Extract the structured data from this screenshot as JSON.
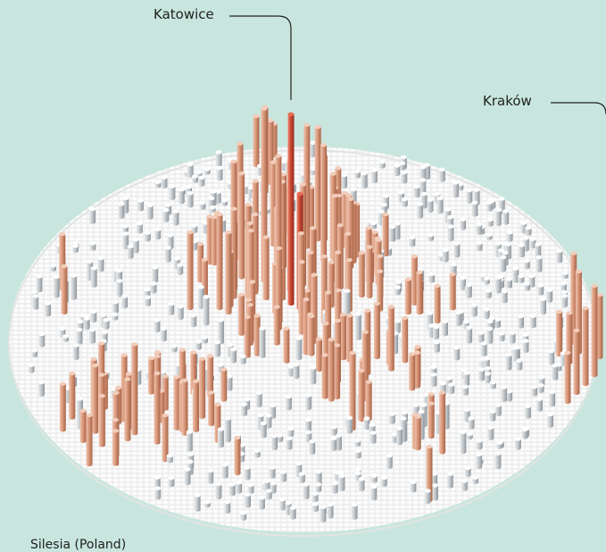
{
  "labels": {
    "katowice": "Katowice",
    "krakow": "Kraków",
    "region": "Silesia (Poland)"
  },
  "colors": {
    "background": "#c8e6de",
    "disc": "#f1f1f1",
    "low_bar": "#c9cdd1",
    "mid_bar": "#d89a7f",
    "high_bar": "#c8402e",
    "leader_line": "#222222"
  }
}
